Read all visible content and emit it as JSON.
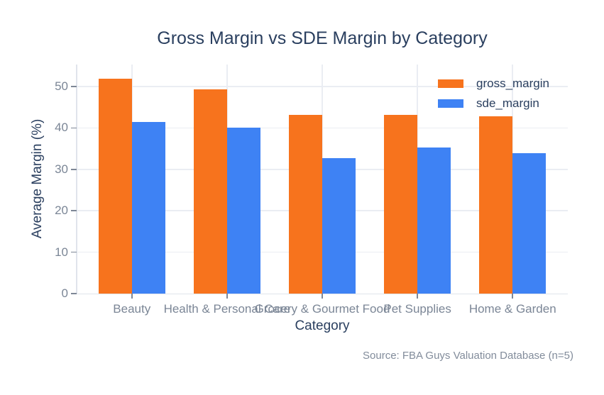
{
  "chart_data": {
    "type": "bar",
    "title": "Gross Margin vs SDE Margin by Category",
    "categories": [
      "Beauty",
      "Health & Personal Care",
      "Grocery & Gourmet Food",
      "Pet Supplies",
      "Home & Garden"
    ],
    "series": [
      {
        "name": "gross_margin",
        "color": "#F7731D",
        "values": [
          51.9,
          49.3,
          43.2,
          43.1,
          42.8
        ]
      },
      {
        "name": "sde_margin",
        "color": "#3E82F4",
        "values": [
          41.4,
          40.0,
          32.7,
          35.3,
          33.9
        ]
      }
    ],
    "xlabel": "Category",
    "ylabel": "Average Margin (%)",
    "ylim": [
      0,
      55.3
    ],
    "yticks": [
      0,
      10,
      20,
      30,
      40,
      50
    ],
    "grid": true,
    "legend_position": "top-right",
    "annotation": "Source: FBA Guys Valuation Database (n=5)"
  },
  "colors": {
    "background": "#ffffff",
    "title_text": "#2a3f5f",
    "axis_title_text": "#2a3f5f",
    "tick_label_text": "#7b8696",
    "gridline": "#eaedf3",
    "axis_line": "#e0e4ec",
    "legend_text": "#2a3f5f",
    "annotation_text": "#828c9b",
    "gross_margin_bar": "#F7731D",
    "sde_margin_bar": "#3E82F4"
  }
}
